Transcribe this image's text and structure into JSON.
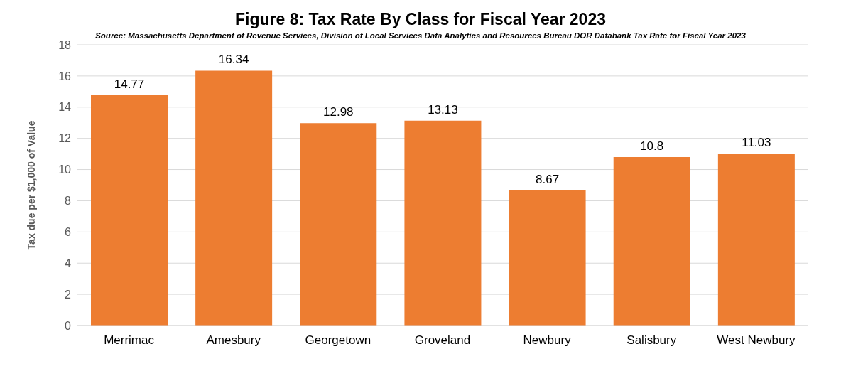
{
  "chart_data": {
    "type": "bar",
    "title": "Figure 8: Tax Rate By Class for Fiscal Year 2023",
    "subtitle": "Source: Massachusetts Department of Revenue Services, Division of Local Services Data Analytics and Resources Bureau DOR Databank Tax Rate for Fiscal Year 2023",
    "ylabel": "Tax due  per $1,000 of Value",
    "categories": [
      "Merrimac",
      "Amesbury",
      "Georgetown",
      "Groveland",
      "Newbury",
      "Salisbury",
      "West Newbury"
    ],
    "values": [
      14.77,
      16.34,
      12.98,
      13.13,
      8.67,
      10.8,
      11.03
    ],
    "color": "#ed7d31",
    "ylim": [
      0,
      18
    ],
    "yticks": [
      0,
      2,
      4,
      6,
      8,
      10,
      12,
      14,
      16,
      18
    ],
    "grid": "y",
    "data_labels": true
  }
}
